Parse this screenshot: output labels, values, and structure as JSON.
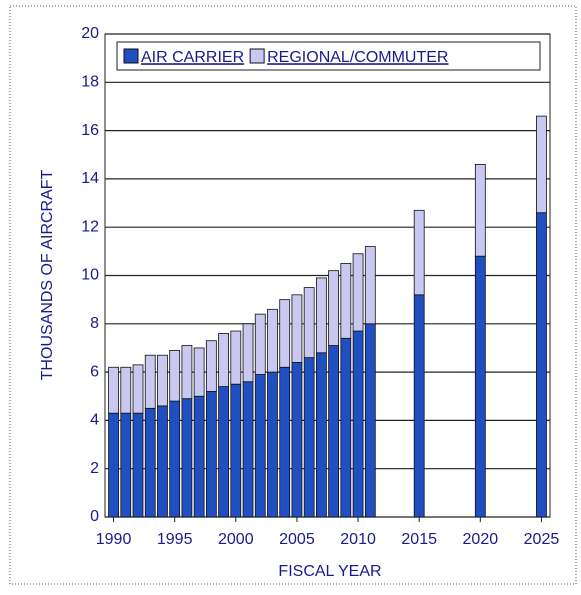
{
  "chart_data": {
    "type": "stacked-bar",
    "x": [
      1990,
      1991,
      1992,
      1993,
      1994,
      1995,
      1996,
      1997,
      1998,
      1999,
      2000,
      2001,
      2002,
      2003,
      2004,
      2005,
      2006,
      2007,
      2008,
      2009,
      2010,
      2011,
      2015,
      2020,
      2025
    ],
    "series": [
      {
        "name": "AIR CARRIER",
        "color": "#1f4fc0",
        "values": [
          4.3,
          4.3,
          4.3,
          4.5,
          4.6,
          4.8,
          4.9,
          5.0,
          5.2,
          5.4,
          5.5,
          5.6,
          5.9,
          6.0,
          6.2,
          6.4,
          6.6,
          6.8,
          7.1,
          7.4,
          7.7,
          8.0,
          9.2,
          10.8,
          12.6
        ]
      },
      {
        "name": "REGIONAL/COMMUTER",
        "color": "#c8c8f0",
        "values": [
          1.9,
          1.9,
          2.0,
          2.2,
          2.1,
          2.1,
          2.2,
          2.0,
          2.1,
          2.2,
          2.2,
          2.4,
          2.5,
          2.6,
          2.8,
          2.8,
          2.9,
          3.1,
          3.1,
          3.1,
          3.2,
          3.2,
          3.5,
          3.8,
          4.0
        ]
      }
    ],
    "xlabel": "FISCAL YEAR",
    "ylabel": "THOUSANDS OF AIRCRAFT",
    "xlim": [
      1989.3,
      2025.7
    ],
    "xticks": [
      1990,
      1995,
      2000,
      2005,
      2010,
      2015,
      2020,
      2025
    ],
    "ylim": [
      0,
      20
    ],
    "yticks": [
      0,
      2,
      4,
      6,
      8,
      10,
      12,
      14,
      16,
      18,
      20
    ],
    "grid": true,
    "legend": "top-left"
  }
}
